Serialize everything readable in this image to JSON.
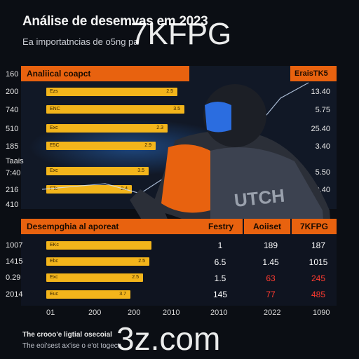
{
  "header": {
    "title": "Análise de desem",
    "title_tail": "vas em 2023",
    "subtitle": "Ea importatncias de o5ng pa"
  },
  "watermarks": {
    "top": "7KFPG",
    "bottom": "3z.com"
  },
  "top_panel": {
    "header_left": "Analiical coapct",
    "header_right": "EraisTK5",
    "y_labels": [
      "160",
      "200",
      "740",
      "510",
      "185",
      "Taais",
      "7:40",
      "216",
      "410"
    ],
    "bars": [
      {
        "label": "Ezs",
        "value": "2.5",
        "fraction": 0.55
      },
      {
        "label": "ENC",
        "value": "3.5",
        "fraction": 0.58
      },
      {
        "label": "Exc",
        "value": "2.3",
        "fraction": 0.51
      },
      {
        "label": "E5C",
        "value": "2.9",
        "fraction": 0.46
      },
      {
        "label": "Exc",
        "value": "3.5",
        "fraction": 0.43
      },
      {
        "label": "FTc",
        "value": "2.4",
        "fraction": 0.36
      }
    ],
    "right_values": [
      "13.40",
      "5.75",
      "25.40",
      "3.40",
      "5.50",
      "20.40"
    ]
  },
  "bottom_panel": {
    "header_left": "Desempghia al aporeat",
    "col_headers": [
      "Festry",
      "Aoiiset",
      "7KFPG"
    ],
    "y_labels": [
      "1007",
      "1415",
      "0.29",
      "2014"
    ],
    "bars": [
      {
        "label": "EKc",
        "value": "",
        "fraction": 0.5
      },
      {
        "label": "Ebc",
        "value": "2.5",
        "fraction": 0.49
      },
      {
        "label": "Exc",
        "value": "2.5",
        "fraction": 0.46
      },
      {
        "label": "Euc",
        "value": "3.7",
        "fraction": 0.4
      }
    ],
    "rows": [
      [
        "1",
        "189",
        "187"
      ],
      [
        "6.5",
        "1.45",
        "1015"
      ],
      [
        "1.5",
        "63",
        "245"
      ],
      [
        "145",
        "77",
        "485"
      ]
    ],
    "x_labels": [
      "01",
      "200",
      "200",
      "2010",
      "2010",
      "2022",
      "1090"
    ]
  },
  "footer": {
    "line1": "The crooo'e ligtial osecoial",
    "line2": "The eoi'sest ax'ise o e'ot togect"
  },
  "colors": {
    "accent": "#e8620f",
    "bar": "#f3b51b",
    "red": "#ff3b30"
  }
}
